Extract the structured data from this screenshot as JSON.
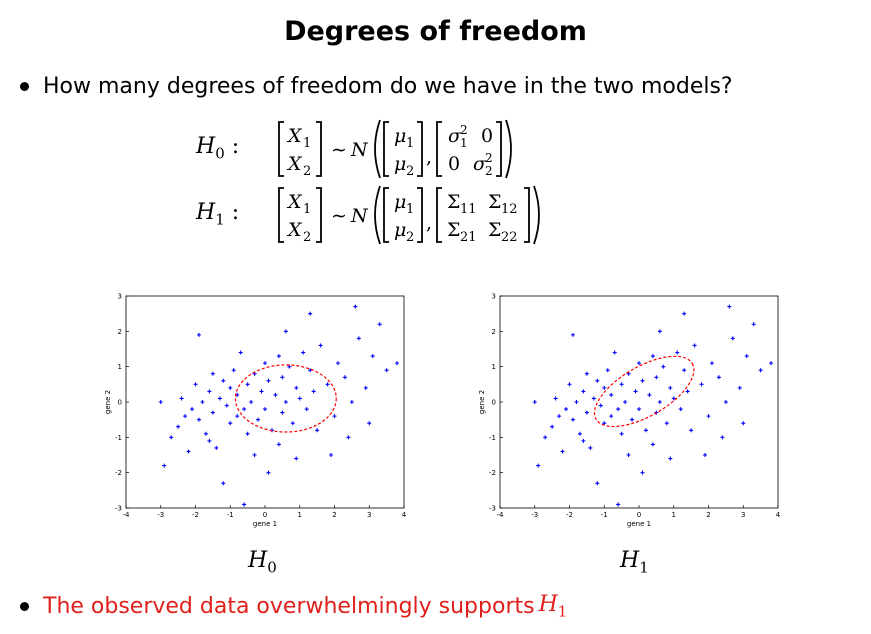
{
  "slide": {
    "title": "Degrees of freedom",
    "bullet1": "How many degrees of freedom do we have in the two models?",
    "bullet2_text": "The observed data overwhelmingly supports ",
    "bullet2_math": "H",
    "bullet2_math_sub": "1"
  },
  "equations": {
    "h0_label": "H",
    "h0_sub": "0",
    "h0_colon": ":",
    "h1_label": "H",
    "h1_sub": "1",
    "h1_colon": ":"
  },
  "plot_labels": {
    "left": "H",
    "left_sub": "0",
    "right": "H",
    "right_sub": "1"
  },
  "chart_data": [
    {
      "type": "scatter",
      "xlabel": "gene 1",
      "ylabel": "gene 2",
      "xlim": [
        -4,
        4
      ],
      "ylim": [
        -3,
        3
      ],
      "xticks": [
        -4,
        -3,
        -2,
        -1,
        0,
        1,
        2,
        3,
        4
      ],
      "yticks": [
        -3,
        -2,
        -1,
        0,
        1,
        2,
        3
      ],
      "point_color": "#0000ff",
      "ellipse": {
        "cx": 0.6,
        "cy": 0.1,
        "rx": 1.45,
        "ry": 0.95,
        "angle_deg": 0,
        "color": "#ff0000"
      },
      "points": [
        [
          -3.0,
          0.0
        ],
        [
          -2.7,
          -1.0
        ],
        [
          -2.5,
          -0.7
        ],
        [
          -2.4,
          0.1
        ],
        [
          -2.3,
          -0.4
        ],
        [
          -2.1,
          -0.2
        ],
        [
          -2.0,
          0.5
        ],
        [
          -1.9,
          -0.5
        ],
        [
          -1.8,
          0.0
        ],
        [
          -1.7,
          -0.9
        ],
        [
          -1.6,
          0.3
        ],
        [
          -1.5,
          -0.3
        ],
        [
          -1.5,
          0.8
        ],
        [
          -1.4,
          -1.3
        ],
        [
          -1.3,
          0.1
        ],
        [
          -1.2,
          0.6
        ],
        [
          -1.1,
          -0.1
        ],
        [
          -1.0,
          -0.6
        ],
        [
          -1.0,
          0.4
        ],
        [
          -0.9,
          0.9
        ],
        [
          -0.8,
          -0.4
        ],
        [
          -0.8,
          0.2
        ],
        [
          -0.7,
          1.4
        ],
        [
          -0.6,
          -0.2
        ],
        [
          -0.5,
          0.5
        ],
        [
          -0.5,
          -0.9
        ],
        [
          -0.4,
          0.0
        ],
        [
          -0.3,
          0.8
        ],
        [
          -0.2,
          -0.5
        ],
        [
          -0.1,
          0.3
        ],
        [
          0.0,
          1.1
        ],
        [
          0.0,
          -0.2
        ],
        [
          0.1,
          0.6
        ],
        [
          0.2,
          -0.8
        ],
        [
          0.3,
          0.2
        ],
        [
          0.4,
          1.3
        ],
        [
          0.5,
          -0.3
        ],
        [
          0.5,
          0.7
        ],
        [
          0.6,
          0.0
        ],
        [
          0.7,
          1.0
        ],
        [
          0.8,
          -0.6
        ],
        [
          0.9,
          0.4
        ],
        [
          1.0,
          0.1
        ],
        [
          1.1,
          1.4
        ],
        [
          1.2,
          -0.2
        ],
        [
          1.3,
          0.9
        ],
        [
          1.4,
          0.3
        ],
        [
          1.5,
          -0.8
        ],
        [
          1.6,
          1.6
        ],
        [
          1.8,
          0.5
        ],
        [
          2.0,
          -0.4
        ],
        [
          2.1,
          1.1
        ],
        [
          2.3,
          0.7
        ],
        [
          2.5,
          0.0
        ],
        [
          2.7,
          1.8
        ],
        [
          2.9,
          0.4
        ],
        [
          3.0,
          -0.6
        ],
        [
          3.1,
          1.3
        ],
        [
          3.3,
          2.2
        ],
        [
          3.5,
          0.9
        ],
        [
          3.8,
          1.1
        ],
        [
          -0.3,
          -1.5
        ],
        [
          0.4,
          -1.2
        ],
        [
          -1.2,
          -2.3
        ],
        [
          -2.9,
          -1.8
        ],
        [
          -1.9,
          1.9
        ],
        [
          0.6,
          2.0
        ],
        [
          2.6,
          2.7
        ],
        [
          -1.6,
          -1.1
        ],
        [
          1.9,
          -1.5
        ],
        [
          0.1,
          -2.0
        ],
        [
          -0.6,
          -2.9
        ],
        [
          1.3,
          2.5
        ],
        [
          -2.2,
          -1.4
        ],
        [
          2.4,
          -1.0
        ],
        [
          0.9,
          -1.6
        ]
      ]
    },
    {
      "type": "scatter",
      "xlabel": "gene 1",
      "ylabel": "gene 2",
      "xlim": [
        -4,
        4
      ],
      "ylim": [
        -3,
        3
      ],
      "xticks": [
        -4,
        -3,
        -2,
        -1,
        0,
        1,
        2,
        3,
        4
      ],
      "yticks": [
        -3,
        -2,
        -1,
        0,
        1,
        2,
        3
      ],
      "point_color": "#0000ff",
      "ellipse": {
        "cx": 0.15,
        "cy": 0.3,
        "rx": 1.6,
        "ry": 0.7,
        "angle_deg": -30,
        "color": "#ff0000"
      },
      "points": [
        [
          -3.0,
          0.0
        ],
        [
          -2.7,
          -1.0
        ],
        [
          -2.5,
          -0.7
        ],
        [
          -2.4,
          0.1
        ],
        [
          -2.3,
          -0.4
        ],
        [
          -2.1,
          -0.2
        ],
        [
          -2.0,
          0.5
        ],
        [
          -1.9,
          -0.5
        ],
        [
          -1.8,
          0.0
        ],
        [
          -1.7,
          -0.9
        ],
        [
          -1.6,
          0.3
        ],
        [
          -1.5,
          -0.3
        ],
        [
          -1.5,
          0.8
        ],
        [
          -1.4,
          -1.3
        ],
        [
          -1.3,
          0.1
        ],
        [
          -1.2,
          0.6
        ],
        [
          -1.1,
          -0.1
        ],
        [
          -1.0,
          -0.6
        ],
        [
          -1.0,
          0.4
        ],
        [
          -0.9,
          0.9
        ],
        [
          -0.8,
          -0.4
        ],
        [
          -0.8,
          0.2
        ],
        [
          -0.7,
          1.4
        ],
        [
          -0.6,
          -0.2
        ],
        [
          -0.5,
          0.5
        ],
        [
          -0.5,
          -0.9
        ],
        [
          -0.4,
          0.0
        ],
        [
          -0.3,
          0.8
        ],
        [
          -0.2,
          -0.5
        ],
        [
          -0.1,
          0.3
        ],
        [
          0.0,
          1.1
        ],
        [
          0.0,
          -0.2
        ],
        [
          0.1,
          0.6
        ],
        [
          0.2,
          -0.8
        ],
        [
          0.3,
          0.2
        ],
        [
          0.4,
          1.3
        ],
        [
          0.5,
          -0.3
        ],
        [
          0.5,
          0.7
        ],
        [
          0.6,
          0.0
        ],
        [
          0.7,
          1.0
        ],
        [
          0.8,
          -0.6
        ],
        [
          0.9,
          0.4
        ],
        [
          1.0,
          0.1
        ],
        [
          1.1,
          1.4
        ],
        [
          1.2,
          -0.2
        ],
        [
          1.3,
          0.9
        ],
        [
          1.4,
          0.3
        ],
        [
          1.5,
          -0.8
        ],
        [
          1.6,
          1.6
        ],
        [
          1.8,
          0.5
        ],
        [
          2.0,
          -0.4
        ],
        [
          2.1,
          1.1
        ],
        [
          2.3,
          0.7
        ],
        [
          2.5,
          0.0
        ],
        [
          2.7,
          1.8
        ],
        [
          2.9,
          0.4
        ],
        [
          3.0,
          -0.6
        ],
        [
          3.1,
          1.3
        ],
        [
          3.3,
          2.2
        ],
        [
          3.5,
          0.9
        ],
        [
          3.8,
          1.1
        ],
        [
          -0.3,
          -1.5
        ],
        [
          0.4,
          -1.2
        ],
        [
          -1.2,
          -2.3
        ],
        [
          -2.9,
          -1.8
        ],
        [
          -1.9,
          1.9
        ],
        [
          0.6,
          2.0
        ],
        [
          2.6,
          2.7
        ],
        [
          -1.6,
          -1.1
        ],
        [
          1.9,
          -1.5
        ],
        [
          0.1,
          -2.0
        ],
        [
          -0.6,
          -2.9
        ],
        [
          1.3,
          2.5
        ],
        [
          -2.2,
          -1.4
        ],
        [
          2.4,
          -1.0
        ],
        [
          0.9,
          -1.6
        ]
      ]
    }
  ]
}
